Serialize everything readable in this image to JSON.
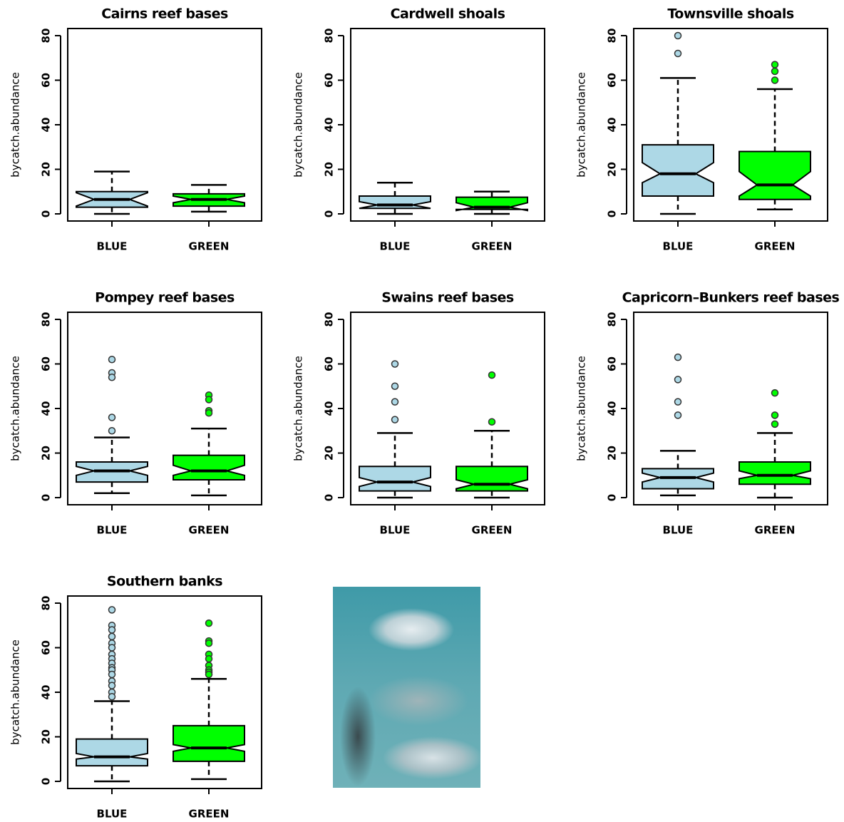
{
  "chart_data": [
    {
      "type": "box",
      "title": "Cairns reef bases",
      "ylabel": "bycatch.abundance",
      "categories": [
        "BLUE",
        "GREEN"
      ],
      "colors": [
        "#add8e6",
        "#00ff00"
      ],
      "ylim": [
        -3.2,
        83.2
      ],
      "yticks": [
        0,
        20,
        40,
        60,
        80
      ],
      "boxes": [
        {
          "whisker_low": 0,
          "q1": 3,
          "median": 6.5,
          "q3": 10,
          "whisker_high": 19,
          "notch_low": 3.5,
          "notch_high": 9.5,
          "outliers": []
        },
        {
          "whisker_low": 1,
          "q1": 3.5,
          "median": 6.5,
          "q3": 9,
          "whisker_high": 13,
          "notch_low": 5,
          "notch_high": 8,
          "outliers": []
        }
      ]
    },
    {
      "type": "box",
      "title": "Cardwell shoals",
      "ylabel": "bycatch.abundance",
      "categories": [
        "BLUE",
        "GREEN"
      ],
      "colors": [
        "#add8e6",
        "#00ff00"
      ],
      "ylim": [
        -3.2,
        83.2
      ],
      "yticks": [
        0,
        20,
        40,
        60,
        80
      ],
      "boxes": [
        {
          "whisker_low": 0,
          "q1": 2.5,
          "median": 4,
          "q3": 8,
          "whisker_high": 14,
          "notch_low": 2.5,
          "notch_high": 5.5,
          "outliers": []
        },
        {
          "whisker_low": 0,
          "q1": 2,
          "median": 3,
          "q3": 7.5,
          "whisker_high": 10,
          "notch_low": 1.5,
          "notch_high": 5,
          "outliers": []
        }
      ]
    },
    {
      "type": "box",
      "title": "Townsville shoals",
      "ylabel": "bycatch.abundance",
      "categories": [
        "BLUE",
        "GREEN"
      ],
      "colors": [
        "#add8e6",
        "#00ff00"
      ],
      "ylim": [
        -3.2,
        83.2
      ],
      "yticks": [
        0,
        20,
        40,
        60,
        80
      ],
      "boxes": [
        {
          "whisker_low": 0,
          "q1": 8,
          "median": 18,
          "q3": 31,
          "whisker_high": 61,
          "notch_low": 14,
          "notch_high": 23,
          "outliers": [
            80,
            72
          ]
        },
        {
          "whisker_low": 2,
          "q1": 6.5,
          "median": 13,
          "q3": 28,
          "whisker_high": 56,
          "notch_low": 8,
          "notch_high": 19,
          "outliers": [
            67,
            64,
            60
          ]
        }
      ]
    },
    {
      "type": "box",
      "title": "Pompey reef bases",
      "ylabel": "bycatch.abundance",
      "categories": [
        "BLUE",
        "GREEN"
      ],
      "colors": [
        "#add8e6",
        "#00ff00"
      ],
      "ylim": [
        -3.2,
        83.2
      ],
      "yticks": [
        0,
        20,
        40,
        60,
        80
      ],
      "boxes": [
        {
          "whisker_low": 2,
          "q1": 7,
          "median": 12,
          "q3": 16,
          "whisker_high": 27,
          "notch_low": 10,
          "notch_high": 14,
          "outliers": [
            62,
            56,
            54,
            36,
            30
          ]
        },
        {
          "whisker_low": 1,
          "q1": 8,
          "median": 12,
          "q3": 19,
          "whisker_high": 31,
          "notch_low": 10,
          "notch_high": 14.5,
          "outliers": [
            46,
            44,
            39,
            38
          ]
        }
      ]
    },
    {
      "type": "box",
      "title": "Swains reef bases",
      "ylabel": "bycatch.abundance",
      "categories": [
        "BLUE",
        "GREEN"
      ],
      "colors": [
        "#add8e6",
        "#00ff00"
      ],
      "ylim": [
        -3.2,
        83.2
      ],
      "yticks": [
        0,
        20,
        40,
        60,
        80
      ],
      "boxes": [
        {
          "whisker_low": 0,
          "q1": 3,
          "median": 7,
          "q3": 14,
          "whisker_high": 29,
          "notch_low": 5,
          "notch_high": 9,
          "outliers": [
            60,
            50,
            43,
            35
          ]
        },
        {
          "whisker_low": 0,
          "q1": 3,
          "median": 6,
          "q3": 14,
          "whisker_high": 30,
          "notch_low": 4,
          "notch_high": 8,
          "outliers": [
            55,
            34
          ]
        }
      ]
    },
    {
      "type": "box",
      "title": "Capricorn–Bunkers reef bases",
      "ylabel": "bycatch.abundance",
      "categories": [
        "BLUE",
        "GREEN"
      ],
      "colors": [
        "#add8e6",
        "#00ff00"
      ],
      "ylim": [
        -3.2,
        83.2
      ],
      "yticks": [
        0,
        20,
        40,
        60,
        80
      ],
      "boxes": [
        {
          "whisker_low": 1,
          "q1": 4,
          "median": 9,
          "q3": 13,
          "whisker_high": 21,
          "notch_low": 7,
          "notch_high": 11,
          "outliers": [
            63,
            53,
            43,
            37
          ]
        },
        {
          "whisker_low": 0,
          "q1": 6,
          "median": 10,
          "q3": 16,
          "whisker_high": 29,
          "notch_low": 8.5,
          "notch_high": 12,
          "outliers": [
            47,
            37,
            33
          ]
        }
      ]
    },
    {
      "type": "box",
      "title": "Southern banks",
      "ylabel": "bycatch.abundance",
      "categories": [
        "BLUE",
        "GREEN"
      ],
      "colors": [
        "#add8e6",
        "#00ff00"
      ],
      "ylim": [
        -3.2,
        83.2
      ],
      "yticks": [
        0,
        20,
        40,
        60,
        80
      ],
      "boxes": [
        {
          "whisker_low": 0,
          "q1": 7,
          "median": 11,
          "q3": 19,
          "whisker_high": 36,
          "notch_low": 10,
          "notch_high": 12.5,
          "outliers": [
            77,
            70,
            68,
            65,
            62,
            60,
            57,
            55,
            53,
            51,
            50,
            48,
            45,
            43,
            40,
            38
          ]
        },
        {
          "whisker_low": 1,
          "q1": 9,
          "median": 15,
          "q3": 25,
          "whisker_high": 46,
          "notch_low": 13.5,
          "notch_high": 16.5,
          "outliers": [
            71,
            63,
            62,
            57,
            55,
            52,
            50,
            49,
            48
          ]
        }
      ]
    }
  ]
}
